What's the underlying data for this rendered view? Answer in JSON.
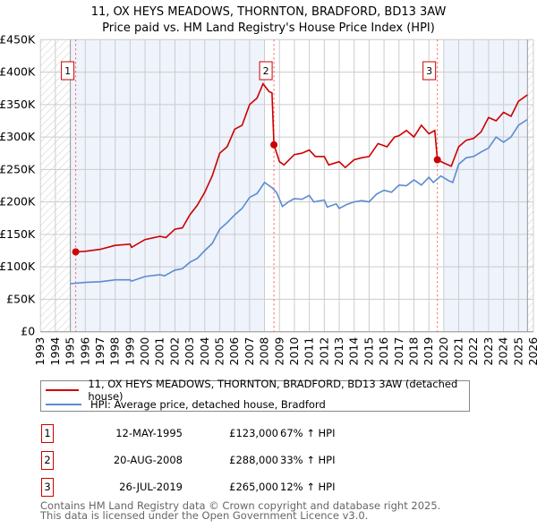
{
  "chart_data": {
    "type": "line",
    "title": "11, OX HEYS MEADOWS, THORNTON, BRADFORD, BD13 3AW",
    "subtitle": "Price paid vs. HM Land Registry's House Price Index (HPI)",
    "xlim": [
      1993,
      2026
    ],
    "ylim": [
      0,
      450000
    ],
    "x_ticks": [
      "1993",
      "1994",
      "1995",
      "1996",
      "1997",
      "1998",
      "1999",
      "2000",
      "2001",
      "2002",
      "2003",
      "2004",
      "2005",
      "2006",
      "2007",
      "2008",
      "2009",
      "2010",
      "2011",
      "2012",
      "2013",
      "2014",
      "2015",
      "2016",
      "2017",
      "2018",
      "2019",
      "2020",
      "2021",
      "2022",
      "2023",
      "2024",
      "2025",
      "2026"
    ],
    "y_ticks": [
      {
        "v": 0,
        "label": "£0"
      },
      {
        "v": 50000,
        "label": "£50K"
      },
      {
        "v": 100000,
        "label": "£100K"
      },
      {
        "v": 150000,
        "label": "£150K"
      },
      {
        "v": 200000,
        "label": "£200K"
      },
      {
        "v": 250000,
        "label": "£250K"
      },
      {
        "v": 300000,
        "label": "£300K"
      },
      {
        "v": 350000,
        "label": "£350K"
      },
      {
        "v": 400000,
        "label": "£400K"
      },
      {
        "v": 450000,
        "label": "£450K"
      }
    ],
    "grid": true,
    "data_range": [
      1995,
      2025.6
    ],
    "shaded_periods": [
      [
        1995,
        2008
      ],
      [
        2020,
        2025.6
      ]
    ],
    "series": [
      {
        "name": "11, OX HEYS MEADOWS, THORNTON, BRADFORD, BD13 3AW (detached house)",
        "color": "#cc0000",
        "x": [
          1995.36,
          1996,
          1997,
          1998,
          1999,
          1999.1,
          2000,
          2001,
          2001.4,
          2002,
          2002.5,
          2003,
          2003.5,
          2004,
          2004.5,
          2005,
          2005.5,
          2006,
          2006.5,
          2007,
          2007.5,
          2007.9,
          2008.3,
          2008.5,
          2008.63,
          2009,
          2009.3,
          2010,
          2010.5,
          2011,
          2011.4,
          2012,
          2012.3,
          2013,
          2013.4,
          2014,
          2014.5,
          2015,
          2015.6,
          2016.2,
          2016.7,
          2017,
          2017.5,
          2018,
          2018.5,
          2019,
          2019.4,
          2019.57,
          2020,
          2020.5,
          2021,
          2021.5,
          2022,
          2022.5,
          2023,
          2023.5,
          2024,
          2024.5,
          2025,
          2025.6
        ],
        "y": [
          123000,
          124000,
          127000,
          133000,
          135000,
          130000,
          142000,
          147000,
          145000,
          158000,
          160000,
          180000,
          195000,
          215000,
          240000,
          275000,
          285000,
          312000,
          318000,
          350000,
          360000,
          382000,
          370000,
          368000,
          288000,
          262000,
          257000,
          273000,
          275000,
          280000,
          270000,
          270000,
          257000,
          262000,
          253000,
          265000,
          268000,
          270000,
          290000,
          285000,
          300000,
          302000,
          310000,
          300000,
          318000,
          305000,
          310000,
          265000,
          260000,
          255000,
          285000,
          295000,
          298000,
          308000,
          330000,
          325000,
          338000,
          332000,
          355000,
          365000
        ]
      },
      {
        "name": "HPI: Average price, detached house, Bradford",
        "color": "#5b8bd0",
        "x": [
          1995,
          1996,
          1997,
          1998,
          1999,
          1999.1,
          2000,
          2001,
          2001.3,
          2002,
          2002.5,
          2003,
          2003.5,
          2004,
          2004.5,
          2005,
          2005.5,
          2006,
          2006.5,
          2007,
          2007.5,
          2008,
          2008.5,
          2008.8,
          2009.2,
          2009.6,
          2010,
          2010.5,
          2011,
          2011.3,
          2012,
          2012.2,
          2012.8,
          2013,
          2013.5,
          2014,
          2014.5,
          2015,
          2015.5,
          2016,
          2016.5,
          2017,
          2017.5,
          2018,
          2018.5,
          2019,
          2019.3,
          2019.8,
          2020.3,
          2020.6,
          2021,
          2021.5,
          2022,
          2022.5,
          2023,
          2023.5,
          2024,
          2024.5,
          2025,
          2025.6
        ],
        "y": [
          74000,
          76000,
          77000,
          80000,
          80000,
          78000,
          85000,
          88000,
          86000,
          95000,
          97000,
          107000,
          113000,
          125000,
          136000,
          158000,
          168000,
          180000,
          190000,
          207000,
          213000,
          230000,
          222000,
          215000,
          193000,
          200000,
          205000,
          204000,
          210000,
          200000,
          203000,
          192000,
          197000,
          190000,
          196000,
          200000,
          202000,
          200000,
          212000,
          218000,
          215000,
          226000,
          225000,
          234000,
          226000,
          238000,
          230000,
          240000,
          233000,
          230000,
          258000,
          268000,
          270000,
          277000,
          283000,
          300000,
          292000,
          300000,
          318000,
          327000
        ]
      }
    ],
    "sales": [
      {
        "id": "1",
        "x": 1995.36,
        "price": 123000,
        "date": "12-MAY-1995",
        "price_label": "£123,000",
        "hpi": "67% ↑ HPI"
      },
      {
        "id": "2",
        "x": 2008.63,
        "price": 288000,
        "date": "20-AUG-2008",
        "price_label": "£288,000",
        "hpi": "33% ↑ HPI"
      },
      {
        "id": "3",
        "x": 2019.57,
        "price": 265000,
        "date": "26-JUL-2019",
        "price_label": "£265,000",
        "hpi": "12% ↑ HPI"
      }
    ]
  },
  "footer": {
    "line1": "Contains HM Land Registry data © Crown copyright and database right 2025.",
    "line2": "This data is licensed under the Open Government Licence v3.0."
  }
}
